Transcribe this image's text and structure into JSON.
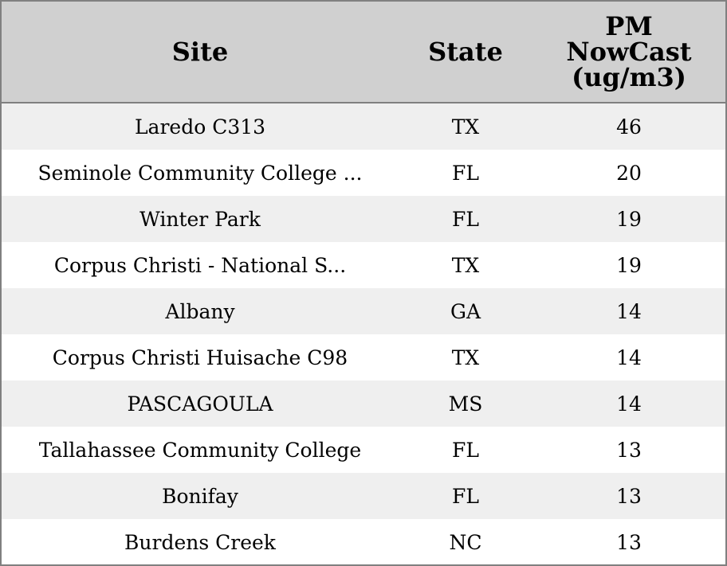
{
  "table": {
    "columns": [
      "Site",
      "State",
      "PM NowCast (ug/m3)"
    ],
    "rows": [
      [
        "Laredo C313",
        "TX",
        46
      ],
      [
        "Seminole Community College ...",
        "FL",
        20
      ],
      [
        "Winter Park",
        "FL",
        19
      ],
      [
        "Corpus Christi - National S...",
        "TX",
        19
      ],
      [
        "Albany",
        "GA",
        14
      ],
      [
        "Corpus Christi Huisache C98",
        "TX",
        14
      ],
      [
        "PASCAGOULA",
        "MS",
        14
      ],
      [
        "Tallahassee Community College",
        "FL",
        13
      ],
      [
        "Bonifay",
        "FL",
        13
      ],
      [
        "Burdens Creek",
        "NC",
        13
      ]
    ]
  }
}
